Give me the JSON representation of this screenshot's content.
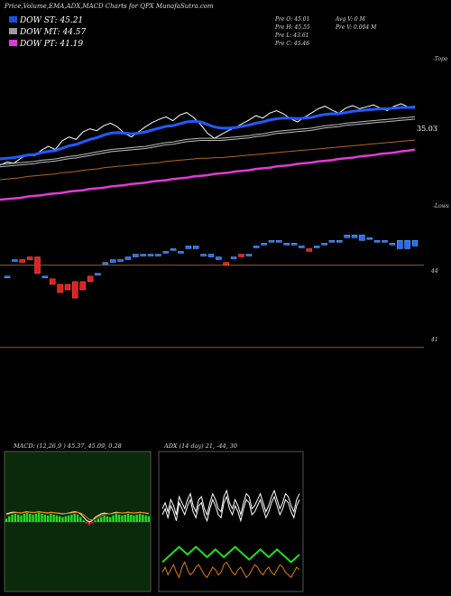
{
  "header": {
    "title": "Price,Volume,EMA,ADX,MACD Charts for QPX  MunafaSutra.com"
  },
  "dow_lines": [
    {
      "label": "DOW ST: 45.21",
      "color": "#1a4fd8"
    },
    {
      "label": "DOW MT: 44.57",
      "color": "#9a9a9a"
    },
    {
      "label": "DOW PT: 41.19",
      "color": "#e23ad6"
    }
  ],
  "stats": {
    "open": "Pre   O: 45.01",
    "high": "Pre   H: 45.55",
    "low": "Pre   L: 43.61",
    "close": "Pre   C: 45.46",
    "avg_volume": "Avg V: 0   M",
    "prev_volume": "Pre   V: 0.004   M"
  },
  "labels": {
    "topo": "-Topo",
    "ema_value": "35.03",
    "lows": "-Lows",
    "level_44": "44",
    "level_41": "41"
  },
  "indicators": {
    "macd": "MACD:               (12,26,9 ) 45.37, 45.09, 0.28",
    "adx": "ADX                    (14 day) 21, -44, 30"
  },
  "chart_data": [
    {
      "type": "line",
      "title": "EMA",
      "series": [
        {
          "name": "price",
          "color": "#ffffff",
          "values": [
            36.5,
            37.0,
            36.8,
            37.6,
            38.2,
            38.0,
            38.9,
            39.5,
            39.0,
            40.4,
            41.0,
            40.6,
            41.8,
            42.3,
            42.0,
            42.8,
            43.2,
            42.6,
            41.6,
            41.0,
            41.8,
            42.6,
            43.3,
            43.8,
            44.2,
            43.6,
            44.5,
            44.9,
            44.1,
            43.0,
            41.6,
            40.8,
            41.4,
            42.0,
            42.5,
            43.1,
            43.7,
            44.4,
            44.0,
            44.8,
            45.2,
            44.7,
            43.9,
            43.4,
            44.1,
            44.8,
            45.5,
            45.9,
            45.3,
            44.8,
            45.6,
            46.0,
            45.5,
            45.8,
            46.1,
            45.6,
            45.2,
            45.9,
            46.3,
            45.8,
            45.9
          ]
        },
        {
          "name": "ema-blue",
          "color": "#1f5bff",
          "values": [
            37.5,
            37.6,
            37.7,
            37.9,
            38.1,
            38.2,
            38.5,
            38.7,
            38.8,
            39.2,
            39.6,
            39.8,
            40.2,
            40.6,
            40.9,
            41.3,
            41.6,
            41.7,
            41.6,
            41.5,
            41.6,
            41.8,
            42.1,
            42.4,
            42.7,
            42.8,
            43.1,
            43.4,
            43.5,
            43.4,
            43.0,
            42.6,
            42.4,
            42.4,
            42.5,
            42.7,
            42.9,
            43.2,
            43.4,
            43.7,
            43.9,
            44.0,
            44.0,
            43.9,
            44.0,
            44.1,
            44.4,
            44.6,
            44.7,
            44.7,
            44.9,
            45.1,
            45.2,
            45.3,
            45.4,
            45.5,
            45.5,
            45.6,
            45.7,
            45.7,
            45.7
          ]
        },
        {
          "name": "ema-gray",
          "color": "#bdbdbd",
          "values": [
            36.6,
            36.7,
            36.8,
            36.9,
            37.0,
            37.1,
            37.3,
            37.4,
            37.5,
            37.7,
            37.9,
            38.0,
            38.2,
            38.4,
            38.6,
            38.8,
            39.0,
            39.1,
            39.2,
            39.3,
            39.4,
            39.5,
            39.7,
            39.9,
            40.1,
            40.2,
            40.4,
            40.6,
            40.7,
            40.8,
            40.8,
            40.8,
            40.8,
            40.9,
            41.0,
            41.1,
            41.2,
            41.4,
            41.5,
            41.7,
            41.9,
            42.0,
            42.1,
            42.2,
            42.3,
            42.4,
            42.6,
            42.8,
            42.9,
            43.0,
            43.2,
            43.3,
            43.4,
            43.5,
            43.6,
            43.7,
            43.8,
            43.9,
            44.0,
            44.1,
            44.2
          ]
        },
        {
          "name": "ema-brown",
          "color": "#b5651d",
          "values": [
            34.2,
            34.3,
            34.4,
            34.5,
            34.7,
            34.8,
            34.9,
            35.0,
            35.1,
            35.3,
            35.4,
            35.5,
            35.7,
            35.8,
            35.9,
            36.1,
            36.2,
            36.3,
            36.4,
            36.5,
            36.6,
            36.7,
            36.8,
            36.9,
            37.1,
            37.2,
            37.3,
            37.4,
            37.5,
            37.6,
            37.6,
            37.7,
            37.7,
            37.8,
            37.9,
            38.0,
            38.1,
            38.2,
            38.3,
            38.4,
            38.5,
            38.6,
            38.7,
            38.8,
            38.9,
            39.0,
            39.1,
            39.2,
            39.3,
            39.4,
            39.5,
            39.6,
            39.7,
            39.8,
            39.9,
            40.0,
            40.1,
            40.2,
            40.3,
            40.4,
            40.5
          ]
        },
        {
          "name": "ema-magenta",
          "color": "#e23ad6",
          "values": [
            31.0,
            31.1,
            31.2,
            31.3,
            31.5,
            31.6,
            31.7,
            31.9,
            32.0,
            32.1,
            32.3,
            32.4,
            32.5,
            32.7,
            32.8,
            32.9,
            33.1,
            33.2,
            33.3,
            33.5,
            33.6,
            33.7,
            33.9,
            34.0,
            34.1,
            34.3,
            34.4,
            34.5,
            34.7,
            34.8,
            34.9,
            35.1,
            35.2,
            35.3,
            35.5,
            35.6,
            35.7,
            35.9,
            36.0,
            36.1,
            36.3,
            36.4,
            36.5,
            36.7,
            36.8,
            36.9,
            37.1,
            37.2,
            37.3,
            37.5,
            37.6,
            37.7,
            37.9,
            38.0,
            38.1,
            38.3,
            38.4,
            38.5,
            38.7,
            38.8,
            39.0
          ]
        }
      ]
    },
    {
      "type": "candlestick",
      "title": "Price",
      "candles": [
        {
          "o": 43.6,
          "c": 43.6
        },
        {
          "o": 44.2,
          "c": 44.2
        },
        {
          "o": 44.2,
          "c": 44.1
        },
        {
          "o": 44.3,
          "c": 44.2
        },
        {
          "o": 44.3,
          "c": 43.7
        },
        {
          "o": 43.6,
          "c": 43.6
        },
        {
          "o": 43.5,
          "c": 43.3
        },
        {
          "o": 43.3,
          "c": 43.0
        },
        {
          "o": 43.3,
          "c": 43.1
        },
        {
          "o": 43.4,
          "c": 42.8
        },
        {
          "o": 43.4,
          "c": 43.1
        },
        {
          "o": 43.6,
          "c": 43.4
        },
        {
          "o": 43.7,
          "c": 43.7
        },
        {
          "o": 44.1,
          "c": 44.1
        },
        {
          "o": 44.1,
          "c": 44.2
        },
        {
          "o": 44.2,
          "c": 44.2
        },
        {
          "o": 44.2,
          "c": 44.3
        },
        {
          "o": 44.3,
          "c": 44.4
        },
        {
          "o": 44.4,
          "c": 44.4
        },
        {
          "o": 44.4,
          "c": 44.4
        },
        {
          "o": 44.4,
          "c": 44.4
        },
        {
          "o": 44.5,
          "c": 44.5
        },
        {
          "o": 44.6,
          "c": 44.6
        },
        {
          "o": 44.5,
          "c": 44.5
        },
        {
          "o": 44.6,
          "c": 44.7
        },
        {
          "o": 44.6,
          "c": 44.7
        },
        {
          "o": 44.4,
          "c": 44.4
        },
        {
          "o": 44.3,
          "c": 44.4
        },
        {
          "o": 44.2,
          "c": 44.3
        },
        {
          "o": 44.1,
          "c": 44.0
        },
        {
          "o": 44.3,
          "c": 44.3
        },
        {
          "o": 44.4,
          "c": 44.3
        },
        {
          "o": 44.4,
          "c": 44.4
        },
        {
          "o": 44.7,
          "c": 44.7
        },
        {
          "o": 44.8,
          "c": 44.8
        },
        {
          "o": 44.9,
          "c": 44.9
        },
        {
          "o": 44.9,
          "c": 44.9
        },
        {
          "o": 44.8,
          "c": 44.8
        },
        {
          "o": 44.8,
          "c": 44.8
        },
        {
          "o": 44.7,
          "c": 44.7
        },
        {
          "o": 44.6,
          "c": 44.5
        },
        {
          "o": 44.7,
          "c": 44.7
        },
        {
          "o": 44.8,
          "c": 44.8
        },
        {
          "o": 44.9,
          "c": 44.9
        },
        {
          "o": 44.9,
          "c": 44.9
        },
        {
          "o": 45.0,
          "c": 45.1
        },
        {
          "o": 45.0,
          "c": 45.1
        },
        {
          "o": 44.9,
          "c": 45.1
        },
        {
          "o": 45.0,
          "c": 45.0
        },
        {
          "o": 44.9,
          "c": 44.9
        },
        {
          "o": 44.9,
          "c": 44.9
        },
        {
          "o": 44.8,
          "c": 44.8
        },
        {
          "o": 44.6,
          "c": 44.9
        },
        {
          "o": 44.6,
          "c": 44.9
        },
        {
          "o": 44.7,
          "c": 44.9
        }
      ]
    },
    {
      "type": "area",
      "title": "MACD",
      "histogram": [
        0.2,
        0.35,
        0.45,
        0.5,
        0.45,
        0.4,
        0.5,
        0.55,
        0.5,
        0.45,
        0.5,
        0.55,
        0.5,
        0.45,
        0.4,
        0.5,
        0.45,
        0.4,
        0.35,
        0.3,
        0.35,
        0.4,
        0.45,
        0.5,
        0.45,
        0.3,
        0.1,
        -0.1,
        -0.2,
        -0.1,
        0.1,
        0.2,
        0.3,
        0.4,
        0.35,
        0.3,
        0.4,
        0.5,
        0.45,
        0.4,
        0.45,
        0.5,
        0.45,
        0.4,
        0.45,
        0.5,
        0.45,
        0.4,
        0.35
      ],
      "macd": [
        0.5,
        0.55,
        0.6,
        0.6,
        0.58,
        0.55,
        0.6,
        0.62,
        0.6,
        0.58,
        0.6,
        0.62,
        0.6,
        0.58,
        0.55,
        0.6,
        0.58,
        0.55,
        0.52,
        0.5,
        0.52,
        0.55,
        0.6,
        0.62,
        0.6,
        0.5,
        0.3,
        0.1,
        0.0,
        0.1,
        0.3,
        0.4,
        0.5,
        0.55,
        0.52,
        0.5,
        0.55,
        0.6,
        0.58,
        0.55,
        0.58,
        0.6,
        0.58,
        0.55,
        0.58,
        0.6,
        0.58,
        0.55,
        0.5
      ],
      "signal": [
        0.45,
        0.5,
        0.55,
        0.58,
        0.58,
        0.57,
        0.58,
        0.6,
        0.6,
        0.59,
        0.59,
        0.6,
        0.6,
        0.59,
        0.57,
        0.58,
        0.58,
        0.56,
        0.54,
        0.52,
        0.52,
        0.53,
        0.56,
        0.58,
        0.59,
        0.55,
        0.45,
        0.3,
        0.15,
        0.12,
        0.2,
        0.3,
        0.4,
        0.48,
        0.5,
        0.5,
        0.52,
        0.56,
        0.57,
        0.56,
        0.57,
        0.58,
        0.58,
        0.56,
        0.57,
        0.58,
        0.58,
        0.56,
        0.53
      ]
    },
    {
      "type": "line",
      "title": "ADX",
      "series": [
        {
          "name": "di-plus",
          "color": "#ffffff",
          "values": [
            30,
            32,
            29,
            33,
            31,
            28,
            34,
            32,
            30,
            33,
            35,
            31,
            29,
            33,
            34,
            30,
            28,
            32,
            35,
            33,
            30,
            29,
            34,
            36,
            32,
            30,
            33,
            31,
            28,
            32,
            35,
            34,
            30,
            31,
            33,
            35,
            32,
            29,
            31,
            34,
            36,
            33,
            30,
            32,
            35,
            34,
            31,
            29,
            33,
            35
          ]
        },
        {
          "name": "di-minus",
          "color": "#ffffff",
          "values": [
            28,
            30,
            27,
            31,
            29,
            26,
            32,
            30,
            28,
            31,
            33,
            29,
            27,
            31,
            32,
            28,
            26,
            30,
            33,
            31,
            28,
            27,
            32,
            34,
            30,
            28,
            31,
            29,
            26,
            30,
            33,
            32,
            28,
            29,
            31,
            33,
            30,
            27,
            29,
            32,
            34,
            31,
            28,
            30,
            33,
            32,
            29,
            27,
            31,
            33
          ]
        },
        {
          "name": "adx",
          "color": "#22dd22",
          "values": [
            14,
            15,
            16,
            17,
            18,
            19,
            20,
            19,
            18,
            17,
            18,
            19,
            20,
            19,
            18,
            17,
            16,
            17,
            18,
            19,
            18,
            17,
            16,
            17,
            18,
            19,
            20,
            19,
            18,
            17,
            16,
            15,
            16,
            17,
            18,
            19,
            18,
            17,
            16,
            17,
            18,
            19,
            18,
            17,
            16,
            15,
            14,
            15,
            16,
            17
          ]
        },
        {
          "name": "orange",
          "color": "#e07b00",
          "values": [
            10,
            12,
            9,
            11,
            13,
            10,
            8,
            12,
            14,
            11,
            9,
            10,
            12,
            13,
            11,
            9,
            8,
            10,
            12,
            11,
            9,
            10,
            13,
            14,
            12,
            10,
            9,
            11,
            12,
            10,
            8,
            9,
            11,
            13,
            12,
            10,
            9,
            11,
            12,
            10,
            9,
            11,
            13,
            12,
            10,
            9,
            8,
            10,
            12,
            11
          ]
        }
      ]
    }
  ]
}
